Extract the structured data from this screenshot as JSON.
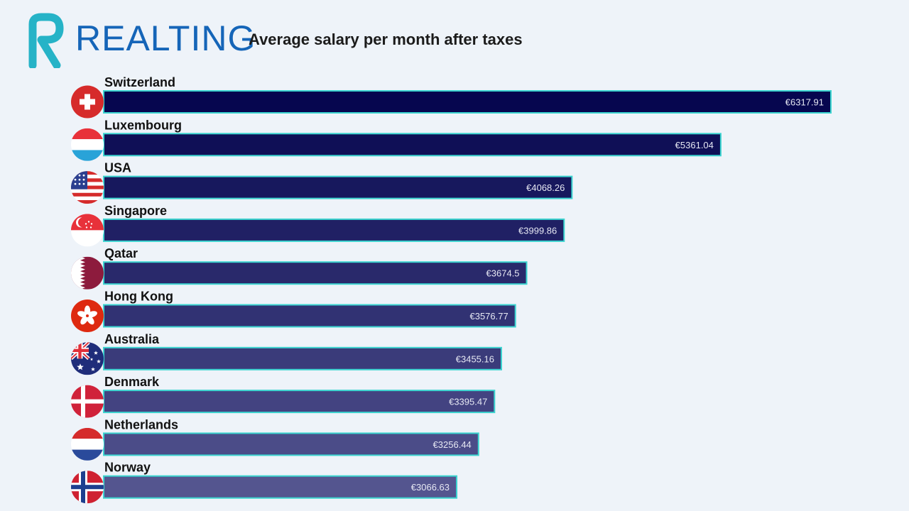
{
  "header": {
    "brand": "REALTING",
    "title": "Average salary per month after taxes"
  },
  "colors": {
    "brand_blue": "#1565b8",
    "logo_teal": "#26b3c7",
    "bar_border": "#3bd4d0",
    "bar_darkest": "#06064f",
    "bar_lightest": "#54558f"
  },
  "chart_data": {
    "type": "bar",
    "orientation": "horizontal",
    "title": "Average salary per month after taxes",
    "categories": [
      "Switzerland",
      "Luxembourg",
      "USA",
      "Singapore",
      "Qatar",
      "Hong Kong",
      "Australia",
      "Denmark",
      "Netherlands",
      "Norway"
    ],
    "values": [
      6317.91,
      5361.04,
      4068.26,
      3999.86,
      3674.5,
      3576.77,
      3455.16,
      3395.47,
      3256.44,
      3066.63
    ],
    "value_labels": [
      "€6317.91",
      "€5361.04",
      "€4068.26",
      "€3999.86",
      "€3674.5",
      "€3576.77",
      "€3455.16",
      "€3395.47",
      "€3256.44",
      "€3066.63"
    ],
    "flags": [
      "switzerland-flag-icon",
      "luxembourg-flag-icon",
      "usa-flag-icon",
      "singapore-flag-icon",
      "qatar-flag-icon",
      "hong-kong-flag-icon",
      "australia-flag-icon",
      "denmark-flag-icon",
      "netherlands-flag-icon",
      "norway-flag-icon"
    ],
    "xlabel": "",
    "ylabel": "",
    "xlim": [
      0,
      6317.91
    ],
    "grid": false
  }
}
